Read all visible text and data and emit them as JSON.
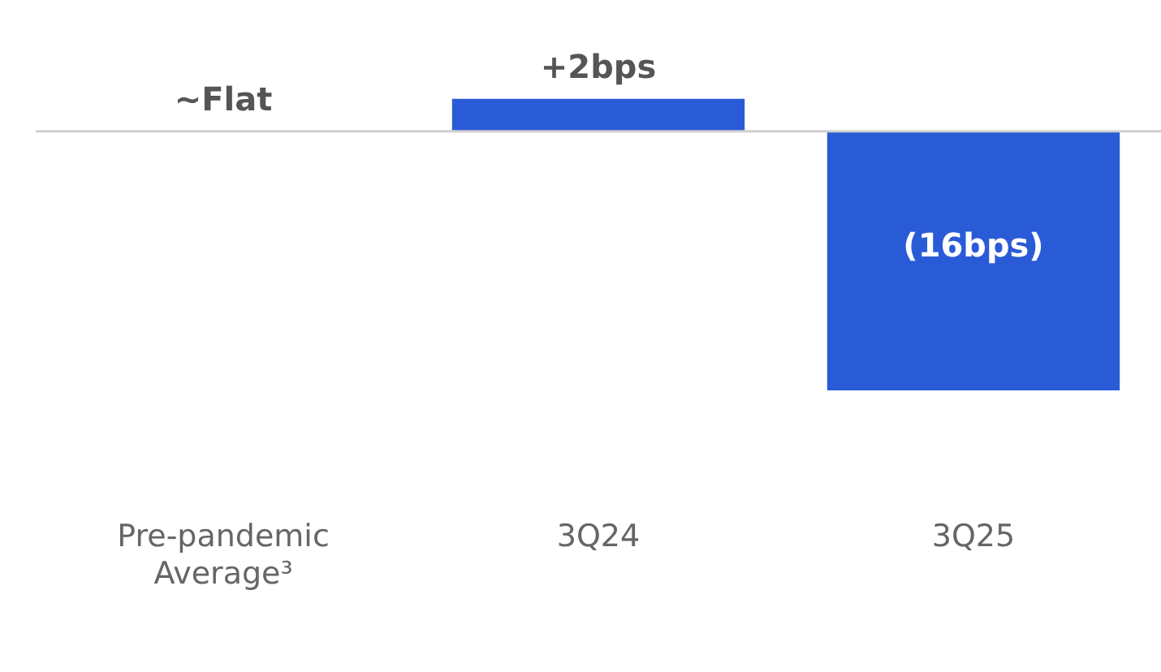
{
  "chart_data": {
    "type": "bar",
    "categories": [
      "Pre-pandemic Average³",
      "3Q24",
      "3Q25"
    ],
    "values": [
      0,
      2,
      -16
    ],
    "value_labels": [
      "~Flat",
      "+2bps",
      "(16bps)"
    ],
    "color": "#2a5bd7",
    "tick_labels": "x",
    "grid": false,
    "legend": false
  }
}
